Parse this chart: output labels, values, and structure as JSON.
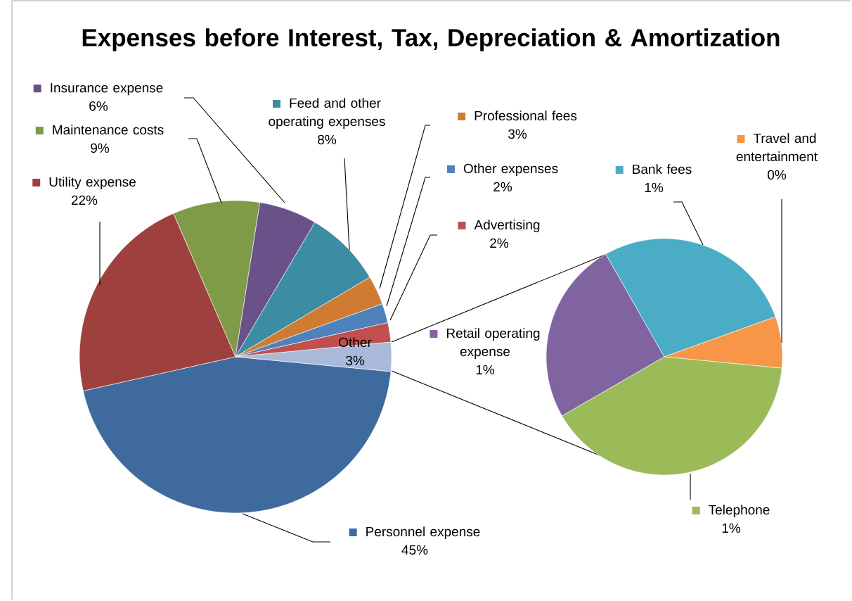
{
  "chart_data": [
    {
      "type": "pie",
      "title": "Expenses before Interest, Tax, Depreciation & Amortization",
      "categories": [
        "Personnel expense",
        "Utility expense",
        "Maintenance costs",
        "Insurance expense",
        "Feed and other operating expenses",
        "Professional fees",
        "Other expenses",
        "Advertising",
        "Other"
      ],
      "values": [
        45,
        22,
        9,
        6,
        8,
        3,
        2,
        2,
        3
      ],
      "colors": [
        "#3f6a9e",
        "#9e413e",
        "#7f9b48",
        "#6a5189",
        "#3c8da3",
        "#d07b32",
        "#4f81bd",
        "#c0504d",
        "#a9b9d9"
      ],
      "value_labels": [
        "45%",
        "22%",
        "9%",
        "6%",
        "8%",
        "3%",
        "2%",
        "2%",
        "3%"
      ],
      "legend": "top"
    },
    {
      "type": "pie",
      "categories": [
        "Retail operating expense",
        "Bank fees",
        "Travel and entertainment",
        "Telephone"
      ],
      "values": [
        0.75,
        0.83,
        0.21,
        1.2
      ],
      "colors": [
        "#8064a2",
        "#4bacc6",
        "#f79646",
        "#9bbb59"
      ],
      "value_labels": [
        "1%",
        "1%",
        "0%",
        "1%"
      ],
      "legend": "top"
    }
  ]
}
